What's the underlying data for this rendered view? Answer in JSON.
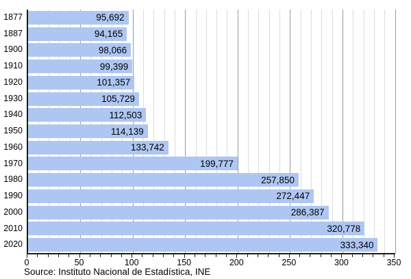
{
  "chart_data": {
    "type": "bar",
    "orientation": "horizontal",
    "title": "",
    "xlabel": "",
    "ylabel": "",
    "categories": [
      "1877",
      "1887",
      "1900",
      "1910",
      "1920",
      "1930",
      "1940",
      "1950",
      "1960",
      "1970",
      "1980",
      "1990",
      "2000",
      "2010",
      "2020"
    ],
    "values": [
      95692,
      94165,
      98066,
      99399,
      101357,
      105729,
      112503,
      114139,
      133742,
      199777,
      257850,
      272447,
      286387,
      320778,
      333340
    ],
    "value_format": "thousands-comma",
    "x_axis_values_in": "thousands",
    "xlim": [
      0,
      350
    ],
    "x_major_tick_step": 50,
    "x_minor_tick_step": 10,
    "x_tick_labels": [
      "0",
      "50",
      "100",
      "150",
      "200",
      "250",
      "300",
      "350"
    ],
    "grid": true,
    "legend": false,
    "source": "Source: Instituto Nacional de Estadística, INE",
    "colors": {
      "bar": "#aec6f2",
      "grid_minor": "#dcdcdc",
      "grid_major": "#9a9a9a",
      "axis": "#1a1a1a",
      "text": "#000000"
    }
  }
}
